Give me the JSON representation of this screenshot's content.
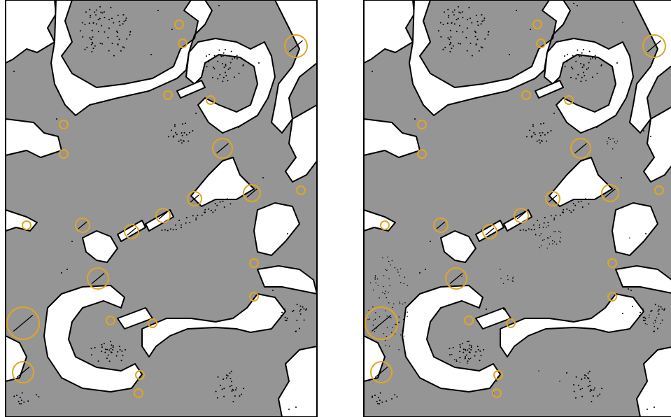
{
  "colors": {
    "background": "#ffffff",
    "region": "#959595",
    "border": "#000000",
    "door": "#e0a526",
    "green": "#00ee00",
    "red": "#ff0000",
    "blue": "#3333dd",
    "purple": "#551199"
  },
  "panels": [
    {
      "id": "left-map",
      "layers": [
        "green-points",
        "red-points",
        "doorways"
      ]
    },
    {
      "id": "right-map",
      "layers": [
        "green-points",
        "red-points",
        "blue-points",
        "purple-points",
        "doorways"
      ]
    }
  ],
  "legend": []
}
